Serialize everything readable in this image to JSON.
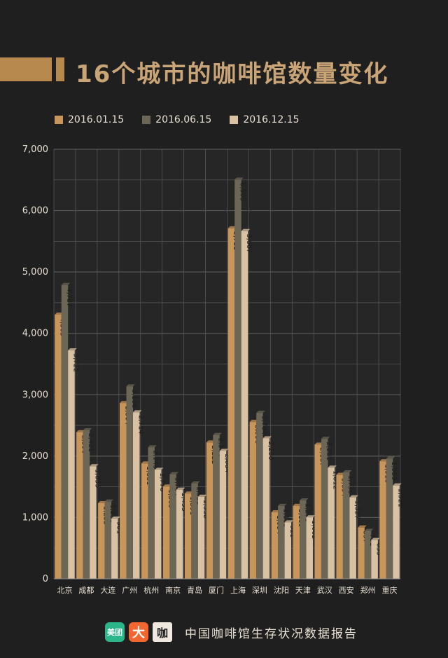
{
  "title": "16个城市的咖啡馆数量变化",
  "footer": {
    "logos": {
      "meituan": "美团",
      "dianping": "大",
      "kafei": "咖"
    },
    "text": "中国咖啡馆生存状况数据报告"
  },
  "colors": {
    "background": "#1f1f1f",
    "series1": "#c8955a",
    "series2": "#6b6655",
    "series3": "#d9c2a3",
    "grid": "#555555",
    "label": "#e8e0d4"
  },
  "chart_data": {
    "type": "bar",
    "title": "16个城市的咖啡馆数量变化",
    "xlabel": "",
    "ylabel": "",
    "ylim": [
      0,
      7000
    ],
    "yticks": [
      "0",
      "1,000",
      "2,000",
      "3,000",
      "4,000",
      "5,000",
      "6,000",
      "7,000"
    ],
    "legend_position": "top-left",
    "categories": [
      "北京",
      "成都",
      "大连",
      "广州",
      "杭州",
      "南京",
      "青岛",
      "厦门",
      "上海",
      "深圳",
      "沈阳",
      "天津",
      "武汉",
      "西安",
      "郑州",
      "重庆"
    ],
    "series": [
      {
        "name": "2016.01.15",
        "values": [
          4305,
          2390,
          1233,
          2864,
          1881,
          1505,
          1391,
          2222,
          5711,
          2556,
          1084,
          1189,
          2187,
          1694,
          837,
          1916
        ],
        "labels": [
          "4,305",
          "2,390",
          "1,233",
          "2,864",
          "1,881",
          "1,505",
          "1,391",
          "2,222",
          "5,711",
          "2,556",
          "1,084",
          "1,189",
          "2,187",
          "1,694",
          "837",
          "1,916"
        ]
      },
      {
        "name": "2016.06.15",
        "values": [
          4787,
          2421,
          1259,
          3136,
          2143,
          1704,
          1555,
          2344,
          6505,
          2704,
          1189,
          1278,
          2281,
          1736,
          781,
          1959
        ],
        "labels": [
          "4,787",
          "2,421",
          "1,259",
          "3,136",
          "2,143",
          "1,704",
          "1,555",
          "2,344",
          "6,505",
          "2,704",
          "1,189",
          "1,278",
          "2,281",
          "1,736",
          "781",
          "1,959"
        ]
      },
      {
        "name": "2016.12.15",
        "values": [
          3722,
          1835,
          981,
          2714,
          1776,
          1453,
          1338,
          2084,
          5667,
          2290,
          921,
          1002,
          1812,
          1327,
          633,
          1521
        ],
        "labels": [
          "3,722",
          "1,835",
          "981",
          "2,714",
          "1,776",
          "1,453",
          "1,338",
          "2,084",
          "5,667",
          "2,290",
          "921",
          "1,002",
          "1,812",
          "1,327",
          "633",
          "1,521"
        ]
      }
    ]
  }
}
